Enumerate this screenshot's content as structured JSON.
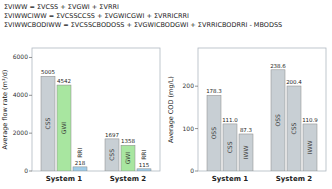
{
  "chart_data": [
    {
      "type": "bar",
      "annotations": [
        "ΣVIWW = ΣVCSS + ΣVGWI + ΣVRRI",
        "ΣVIWWCIWW = ΣVCSSCCSS + ΣVGWICGWI + ΣVRRICRRI",
        "ΣVIWWCBODIWW = ΣVCSSCBODOSS + ΣVGWICBODGWI + ΣVRRICBODRRI - MBODSS"
      ],
      "ylabel": "Average flow rate (m³/d)",
      "categories": [
        "System 1",
        "System 2"
      ],
      "series": [
        {
          "name": "CSS",
          "color": "#c8cfd4",
          "values": [
            5005,
            1697
          ]
        },
        {
          "name": "GWI",
          "color": "#a8e6a0",
          "values": [
            4542,
            1358
          ]
        },
        {
          "name": "RRI",
          "color": "#a0cce8",
          "values": [
            218,
            115
          ]
        }
      ],
      "ylim": [
        0,
        6500
      ],
      "yticks": [
        0,
        2000,
        4000,
        6000
      ],
      "data_labels": true,
      "grid": false
    },
    {
      "type": "bar",
      "ylabel": "Average COD (mg/L)",
      "categories": [
        "System 1",
        "System 2"
      ],
      "series": [
        {
          "name": "OSS",
          "color": "#c8cfd4",
          "values": [
            178.3,
            238.6
          ]
        },
        {
          "name": "CSS",
          "color": "#c8cfd4",
          "values": [
            111.0,
            200.4
          ],
          "value_labels": [
            "111.0",
            "200.4"
          ]
        },
        {
          "name": "IWW",
          "color": "#c8cfd4",
          "values": [
            87.3,
            110.9
          ]
        }
      ],
      "ylim": [
        0,
        290
      ],
      "yticks": [
        0,
        100,
        200
      ],
      "data_labels": true,
      "grid": false
    }
  ]
}
